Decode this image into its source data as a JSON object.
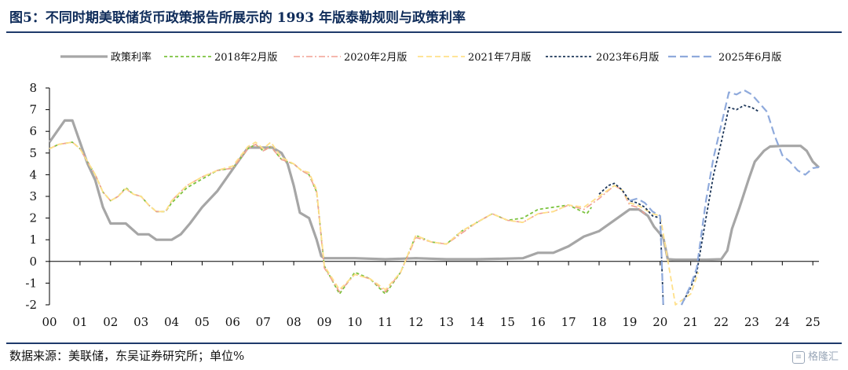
{
  "header": {
    "title": "图5：不同时期美联储货币政策报告所展示的 1993 年版泰勒规则与政策利率"
  },
  "footer": {
    "source": "数据来源：美联储，东吴证券研究所；单位%",
    "watermark": "格隆汇"
  },
  "colors": {
    "policy": "#a6a6a6",
    "v2018": "#7cc33f",
    "v2020": "#f2a093",
    "v2021": "#ffe08a",
    "v2023": "#1b3558",
    "v2025": "#8faadc",
    "rule": "#1f3a6b",
    "title": "#0f2c5a"
  },
  "chart_data": {
    "type": "line",
    "title": "",
    "xlabel": "",
    "ylabel": "",
    "xlim": [
      2000,
      2025.2
    ],
    "ylim": [
      -2,
      8
    ],
    "yticks": [
      -2,
      -1,
      0,
      1,
      2,
      3,
      4,
      5,
      6,
      7,
      8
    ],
    "xtick_labels": [
      "00",
      "01",
      "02",
      "03",
      "04",
      "05",
      "06",
      "07",
      "08",
      "09",
      "10",
      "11",
      "12",
      "13",
      "14",
      "15",
      "16",
      "17",
      "18",
      "19",
      "20",
      "21",
      "22",
      "23",
      "24",
      "25"
    ],
    "legend_position": "top",
    "grid": false,
    "series": [
      {
        "name": "政策利率",
        "style": "solid-thick",
        "points": [
          [
            2000.0,
            5.5
          ],
          [
            2000.25,
            6.0
          ],
          [
            2000.5,
            6.5
          ],
          [
            2000.75,
            6.5
          ],
          [
            2001.0,
            5.5
          ],
          [
            2001.25,
            4.5
          ],
          [
            2001.5,
            3.75
          ],
          [
            2001.75,
            2.5
          ],
          [
            2002.0,
            1.75
          ],
          [
            2002.5,
            1.75
          ],
          [
            2002.9,
            1.25
          ],
          [
            2003.25,
            1.25
          ],
          [
            2003.5,
            1.0
          ],
          [
            2004.0,
            1.0
          ],
          [
            2004.3,
            1.25
          ],
          [
            2004.6,
            1.75
          ],
          [
            2005.0,
            2.5
          ],
          [
            2005.5,
            3.25
          ],
          [
            2006.0,
            4.25
          ],
          [
            2006.5,
            5.25
          ],
          [
            2007.0,
            5.25
          ],
          [
            2007.3,
            5.25
          ],
          [
            2007.6,
            5.0
          ],
          [
            2007.8,
            4.5
          ],
          [
            2008.0,
            3.5
          ],
          [
            2008.2,
            2.25
          ],
          [
            2008.5,
            2.0
          ],
          [
            2008.75,
            1.0
          ],
          [
            2008.9,
            0.25
          ],
          [
            2009.0,
            0.15
          ],
          [
            2010.0,
            0.15
          ],
          [
            2011.0,
            0.1
          ],
          [
            2012.0,
            0.15
          ],
          [
            2013.0,
            0.1
          ],
          [
            2014.0,
            0.1
          ],
          [
            2015.0,
            0.13
          ],
          [
            2015.5,
            0.15
          ],
          [
            2016.0,
            0.4
          ],
          [
            2016.5,
            0.4
          ],
          [
            2017.0,
            0.7
          ],
          [
            2017.5,
            1.15
          ],
          [
            2018.0,
            1.4
          ],
          [
            2018.5,
            1.9
          ],
          [
            2019.0,
            2.4
          ],
          [
            2019.3,
            2.4
          ],
          [
            2019.6,
            2.1
          ],
          [
            2019.8,
            1.6
          ],
          [
            2020.1,
            1.1
          ],
          [
            2020.25,
            0.1
          ],
          [
            2020.5,
            0.08
          ],
          [
            2021.0,
            0.08
          ],
          [
            2021.5,
            0.08
          ],
          [
            2022.0,
            0.1
          ],
          [
            2022.2,
            0.5
          ],
          [
            2022.35,
            1.5
          ],
          [
            2022.6,
            2.5
          ],
          [
            2022.9,
            3.8
          ],
          [
            2023.1,
            4.6
          ],
          [
            2023.4,
            5.1
          ],
          [
            2023.6,
            5.3
          ],
          [
            2024.0,
            5.33
          ],
          [
            2024.6,
            5.33
          ],
          [
            2024.8,
            5.1
          ],
          [
            2025.0,
            4.6
          ],
          [
            2025.2,
            4.33
          ]
        ]
      },
      {
        "name": "2018年2月版",
        "style": "dash-short",
        "points": [
          [
            2000.0,
            5.2
          ],
          [
            2000.3,
            5.4
          ],
          [
            2000.75,
            5.5
          ],
          [
            2001.0,
            5.2
          ],
          [
            2001.5,
            4.0
          ],
          [
            2001.75,
            3.2
          ],
          [
            2002.0,
            2.8
          ],
          [
            2002.25,
            3.0
          ],
          [
            2002.5,
            3.4
          ],
          [
            2002.75,
            3.1
          ],
          [
            2003.0,
            3.0
          ],
          [
            2003.25,
            2.6
          ],
          [
            2003.5,
            2.3
          ],
          [
            2003.8,
            2.3
          ],
          [
            2004.0,
            2.7
          ],
          [
            2004.5,
            3.4
          ],
          [
            2005.0,
            3.8
          ],
          [
            2005.5,
            4.2
          ],
          [
            2006.0,
            4.3
          ],
          [
            2006.5,
            5.2
          ],
          [
            2006.75,
            5.4
          ],
          [
            2007.0,
            5.1
          ],
          [
            2007.25,
            5.3
          ],
          [
            2007.6,
            4.7
          ],
          [
            2008.0,
            4.5
          ],
          [
            2008.25,
            4.2
          ],
          [
            2008.5,
            4.0
          ],
          [
            2008.75,
            3.2
          ],
          [
            2009.0,
            -0.2
          ],
          [
            2009.5,
            -1.5
          ],
          [
            2010.0,
            -0.5
          ],
          [
            2010.5,
            -0.8
          ],
          [
            2011.0,
            -1.5
          ],
          [
            2011.5,
            -0.5
          ],
          [
            2012.0,
            1.2
          ],
          [
            2012.5,
            0.9
          ],
          [
            2013.0,
            0.8
          ],
          [
            2013.5,
            1.4
          ],
          [
            2014.0,
            1.8
          ],
          [
            2014.5,
            2.2
          ],
          [
            2015.0,
            1.9
          ],
          [
            2015.5,
            2.0
          ],
          [
            2016.0,
            2.4
          ],
          [
            2016.5,
            2.5
          ],
          [
            2017.0,
            2.6
          ],
          [
            2017.3,
            2.4
          ],
          [
            2017.6,
            2.2
          ],
          [
            2017.75,
            2.5
          ]
        ]
      },
      {
        "name": "2020年2月版",
        "style": "dash-dot",
        "points": [
          [
            2000.0,
            5.2
          ],
          [
            2000.3,
            5.4
          ],
          [
            2000.75,
            5.5
          ],
          [
            2001.0,
            5.2
          ],
          [
            2001.5,
            4.0
          ],
          [
            2001.75,
            3.2
          ],
          [
            2002.0,
            2.8
          ],
          [
            2002.25,
            3.0
          ],
          [
            2002.5,
            3.35
          ],
          [
            2002.75,
            3.1
          ],
          [
            2003.0,
            3.0
          ],
          [
            2003.25,
            2.6
          ],
          [
            2003.5,
            2.3
          ],
          [
            2003.8,
            2.3
          ],
          [
            2004.0,
            2.8
          ],
          [
            2004.5,
            3.5
          ],
          [
            2005.0,
            3.9
          ],
          [
            2005.5,
            4.2
          ],
          [
            2006.0,
            4.3
          ],
          [
            2006.5,
            5.2
          ],
          [
            2006.75,
            5.4
          ],
          [
            2007.0,
            5.1
          ],
          [
            2007.25,
            5.3
          ],
          [
            2007.6,
            4.7
          ],
          [
            2008.0,
            4.5
          ],
          [
            2008.25,
            4.2
          ],
          [
            2008.5,
            4.0
          ],
          [
            2008.75,
            3.2
          ],
          [
            2009.0,
            -0.3
          ],
          [
            2009.5,
            -1.4
          ],
          [
            2010.0,
            -0.6
          ],
          [
            2010.5,
            -0.8
          ],
          [
            2011.0,
            -1.4
          ],
          [
            2011.5,
            -0.5
          ],
          [
            2012.0,
            1.1
          ],
          [
            2012.5,
            0.9
          ],
          [
            2013.0,
            0.8
          ],
          [
            2013.5,
            1.3
          ],
          [
            2014.0,
            1.8
          ],
          [
            2014.5,
            2.2
          ],
          [
            2015.0,
            1.9
          ],
          [
            2015.5,
            1.8
          ],
          [
            2016.0,
            2.2
          ],
          [
            2016.5,
            2.3
          ],
          [
            2017.0,
            2.6
          ],
          [
            2017.5,
            2.4
          ],
          [
            2018.0,
            2.9
          ],
          [
            2018.5,
            3.5
          ],
          [
            2018.75,
            3.3
          ],
          [
            2019.0,
            2.6
          ],
          [
            2019.25,
            2.5
          ],
          [
            2019.5,
            2.2
          ]
        ]
      },
      {
        "name": "2021年7月版",
        "style": "dash-long-light",
        "points": [
          [
            2000.0,
            5.2
          ],
          [
            2000.3,
            5.4
          ],
          [
            2000.75,
            5.5
          ],
          [
            2001.0,
            5.2
          ],
          [
            2001.5,
            4.0
          ],
          [
            2001.75,
            3.2
          ],
          [
            2002.0,
            2.8
          ],
          [
            2002.25,
            3.0
          ],
          [
            2002.5,
            3.35
          ],
          [
            2002.75,
            3.1
          ],
          [
            2003.0,
            3.0
          ],
          [
            2003.25,
            2.6
          ],
          [
            2003.5,
            2.3
          ],
          [
            2003.8,
            2.3
          ],
          [
            2004.0,
            2.8
          ],
          [
            2004.5,
            3.5
          ],
          [
            2005.0,
            3.9
          ],
          [
            2005.5,
            4.2
          ],
          [
            2006.0,
            4.4
          ],
          [
            2006.5,
            5.3
          ],
          [
            2006.75,
            5.5
          ],
          [
            2007.0,
            5.2
          ],
          [
            2007.25,
            5.5
          ],
          [
            2007.6,
            4.8
          ],
          [
            2008.0,
            4.5
          ],
          [
            2008.25,
            4.2
          ],
          [
            2008.5,
            4.1
          ],
          [
            2008.75,
            3.3
          ],
          [
            2009.0,
            -0.2
          ],
          [
            2009.5,
            -1.3
          ],
          [
            2010.0,
            -0.6
          ],
          [
            2010.5,
            -0.8
          ],
          [
            2011.0,
            -1.3
          ],
          [
            2011.5,
            -0.5
          ],
          [
            2012.0,
            1.2
          ],
          [
            2012.5,
            0.9
          ],
          [
            2013.0,
            0.8
          ],
          [
            2013.5,
            1.4
          ],
          [
            2014.0,
            1.8
          ],
          [
            2014.5,
            2.2
          ],
          [
            2015.0,
            1.9
          ],
          [
            2015.5,
            1.8
          ],
          [
            2016.0,
            2.2
          ],
          [
            2016.5,
            2.3
          ],
          [
            2017.0,
            2.6
          ],
          [
            2017.5,
            2.5
          ],
          [
            2018.0,
            3.0
          ],
          [
            2018.5,
            3.5
          ],
          [
            2018.75,
            3.3
          ],
          [
            2019.0,
            2.7
          ],
          [
            2019.25,
            2.6
          ],
          [
            2019.5,
            2.4
          ],
          [
            2019.75,
            2.2
          ],
          [
            2020.0,
            2.1
          ],
          [
            2020.5,
            -2.0
          ],
          [
            2021.0,
            -1.5
          ],
          [
            2021.25,
            -0.5
          ]
        ]
      },
      {
        "name": "2023年6月版",
        "style": "dash-short-dark",
        "segments": [
          [
            [
              2018.0,
              3.1
            ],
            [
              2018.3,
              3.5
            ],
            [
              2018.5,
              3.6
            ],
            [
              2018.75,
              3.3
            ],
            [
              2019.0,
              2.8
            ],
            [
              2019.25,
              2.7
            ],
            [
              2019.5,
              2.5
            ],
            [
              2019.75,
              2.1
            ],
            [
              2020.0,
              2.0
            ],
            [
              2020.1,
              -2.0
            ]
          ],
          [
            [
              2020.7,
              -2.0
            ],
            [
              2021.0,
              -1.2
            ],
            [
              2021.2,
              -0.5
            ],
            [
              2021.5,
              2.0
            ],
            [
              2021.75,
              4.0
            ],
            [
              2022.0,
              5.5
            ],
            [
              2022.25,
              7.1
            ],
            [
              2022.5,
              7.0
            ],
            [
              2022.75,
              7.2
            ],
            [
              2023.0,
              7.1
            ],
            [
              2023.25,
              6.9
            ]
          ]
        ]
      },
      {
        "name": "2025年6月版",
        "style": "dash-long-blue",
        "segments": [
          [
            [
              2019.0,
              2.8
            ],
            [
              2019.25,
              2.9
            ],
            [
              2019.5,
              2.7
            ],
            [
              2019.75,
              2.3
            ],
            [
              2020.0,
              2.1
            ],
            [
              2020.1,
              -2.0
            ]
          ],
          [
            [
              2020.7,
              -2.0
            ],
            [
              2021.0,
              -1.1
            ],
            [
              2021.2,
              -0.3
            ],
            [
              2021.5,
              2.8
            ],
            [
              2021.75,
              4.8
            ],
            [
              2022.0,
              6.3
            ],
            [
              2022.25,
              7.8
            ],
            [
              2022.5,
              7.7
            ],
            [
              2022.75,
              7.9
            ],
            [
              2023.0,
              7.7
            ],
            [
              2023.25,
              7.3
            ],
            [
              2023.5,
              6.9
            ],
            [
              2023.75,
              5.8
            ],
            [
              2024.0,
              4.9
            ],
            [
              2024.25,
              4.6
            ],
            [
              2024.5,
              4.2
            ],
            [
              2024.75,
              4.0
            ],
            [
              2025.0,
              4.3
            ],
            [
              2025.2,
              4.35
            ]
          ]
        ]
      }
    ]
  }
}
